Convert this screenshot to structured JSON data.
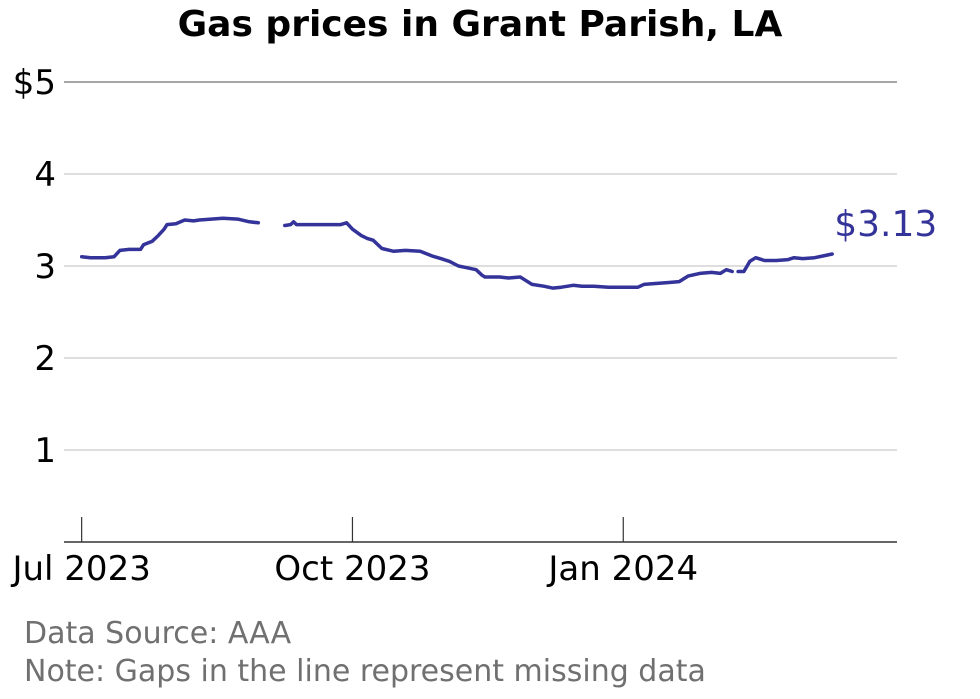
{
  "chart_data": {
    "type": "line",
    "title": "Gas prices in Grant Parish, LA",
    "xlabel": "",
    "ylabel": "",
    "ylim": [
      0,
      5
    ],
    "xlim": [
      "2023-06-25",
      "2024-04-03"
    ],
    "y_ticks": [
      {
        "value": 1,
        "label": "1"
      },
      {
        "value": 2,
        "label": "2"
      },
      {
        "value": 3,
        "label": "3"
      },
      {
        "value": 4,
        "label": "4"
      },
      {
        "value": 5,
        "label": "$5"
      }
    ],
    "x_ticks": [
      {
        "date": "2023-07-01",
        "label": "Jul 2023"
      },
      {
        "date": "2023-10-01",
        "label": "Oct 2023"
      },
      {
        "date": "2024-01-01",
        "label": "Jan 2024"
      }
    ],
    "grid": true,
    "series_color": "#333399",
    "end_label": "$3.13",
    "series": [
      {
        "segments": [
          [
            [
              "2023-07-01",
              3.1
            ],
            [
              "2023-07-04",
              3.09
            ],
            [
              "2023-07-09",
              3.09
            ],
            [
              "2023-07-12",
              3.1
            ],
            [
              "2023-07-14",
              3.17
            ],
            [
              "2023-07-17",
              3.18
            ],
            [
              "2023-07-21",
              3.18
            ],
            [
              "2023-07-22",
              3.23
            ],
            [
              "2023-07-25",
              3.27
            ],
            [
              "2023-07-27",
              3.33
            ],
            [
              "2023-07-29",
              3.4
            ],
            [
              "2023-07-30",
              3.45
            ],
            [
              "2023-08-02",
              3.46
            ],
            [
              "2023-08-05",
              3.5
            ],
            [
              "2023-08-08",
              3.49
            ],
            [
              "2023-08-10",
              3.5
            ],
            [
              "2023-08-14",
              3.51
            ],
            [
              "2023-08-18",
              3.52
            ],
            [
              "2023-08-23",
              3.51
            ],
            [
              "2023-08-27",
              3.48
            ],
            [
              "2023-08-30",
              3.47
            ]
          ],
          [
            [
              "2023-09-08",
              3.44
            ],
            [
              "2023-09-10",
              3.45
            ],
            [
              "2023-09-11",
              3.48
            ],
            [
              "2023-09-12",
              3.45
            ],
            [
              "2023-09-16",
              3.45
            ],
            [
              "2023-09-20",
              3.45
            ],
            [
              "2023-09-25",
              3.45
            ],
            [
              "2023-09-27",
              3.45
            ],
            [
              "2023-09-29",
              3.47
            ],
            [
              "2023-10-01",
              3.4
            ],
            [
              "2023-10-04",
              3.33
            ],
            [
              "2023-10-06",
              3.3
            ],
            [
              "2023-10-08",
              3.28
            ],
            [
              "2023-10-11",
              3.19
            ],
            [
              "2023-10-15",
              3.16
            ],
            [
              "2023-10-19",
              3.17
            ],
            [
              "2023-10-24",
              3.16
            ],
            [
              "2023-10-28",
              3.11
            ],
            [
              "2023-10-31",
              3.08
            ],
            [
              "2023-11-03",
              3.05
            ],
            [
              "2023-11-06",
              3.0
            ],
            [
              "2023-11-09",
              2.98
            ],
            [
              "2023-11-12",
              2.96
            ],
            [
              "2023-11-14",
              2.9
            ],
            [
              "2023-11-15",
              2.88
            ],
            [
              "2023-11-20",
              2.88
            ],
            [
              "2023-11-23",
              2.87
            ],
            [
              "2023-11-27",
              2.88
            ],
            [
              "2023-11-29",
              2.84
            ],
            [
              "2023-12-01",
              2.8
            ],
            [
              "2023-12-05",
              2.78
            ],
            [
              "2023-12-08",
              2.76
            ],
            [
              "2023-12-11",
              2.77
            ],
            [
              "2023-12-15",
              2.79
            ],
            [
              "2023-12-18",
              2.78
            ],
            [
              "2023-12-22",
              2.78
            ],
            [
              "2023-12-27",
              2.77
            ],
            [
              "2023-12-31",
              2.77
            ],
            [
              "2024-01-06",
              2.77
            ],
            [
              "2024-01-08",
              2.8
            ],
            [
              "2024-01-12",
              2.81
            ],
            [
              "2024-01-16",
              2.82
            ],
            [
              "2024-01-20",
              2.83
            ],
            [
              "2024-01-23",
              2.89
            ],
            [
              "2024-01-27",
              2.92
            ],
            [
              "2024-01-31",
              2.93
            ],
            [
              "2024-02-03",
              2.92
            ],
            [
              "2024-02-05",
              2.96
            ],
            [
              "2024-02-07",
              2.94
            ]
          ],
          [
            [
              "2024-02-09",
              2.94
            ],
            [
              "2024-02-11",
              2.94
            ],
            [
              "2024-02-13",
              3.05
            ],
            [
              "2024-02-15",
              3.09
            ],
            [
              "2024-02-18",
              3.06
            ],
            [
              "2024-02-22",
              3.06
            ],
            [
              "2024-02-26",
              3.07
            ],
            [
              "2024-02-28",
              3.09
            ],
            [
              "2024-03-02",
              3.08
            ],
            [
              "2024-03-06",
              3.09
            ],
            [
              "2024-03-09",
              3.11
            ],
            [
              "2024-03-12",
              3.13
            ]
          ]
        ]
      }
    ]
  },
  "notes": {
    "source": "Data Source: AAA",
    "gaps": "Note: Gaps in the line represent missing data"
  }
}
